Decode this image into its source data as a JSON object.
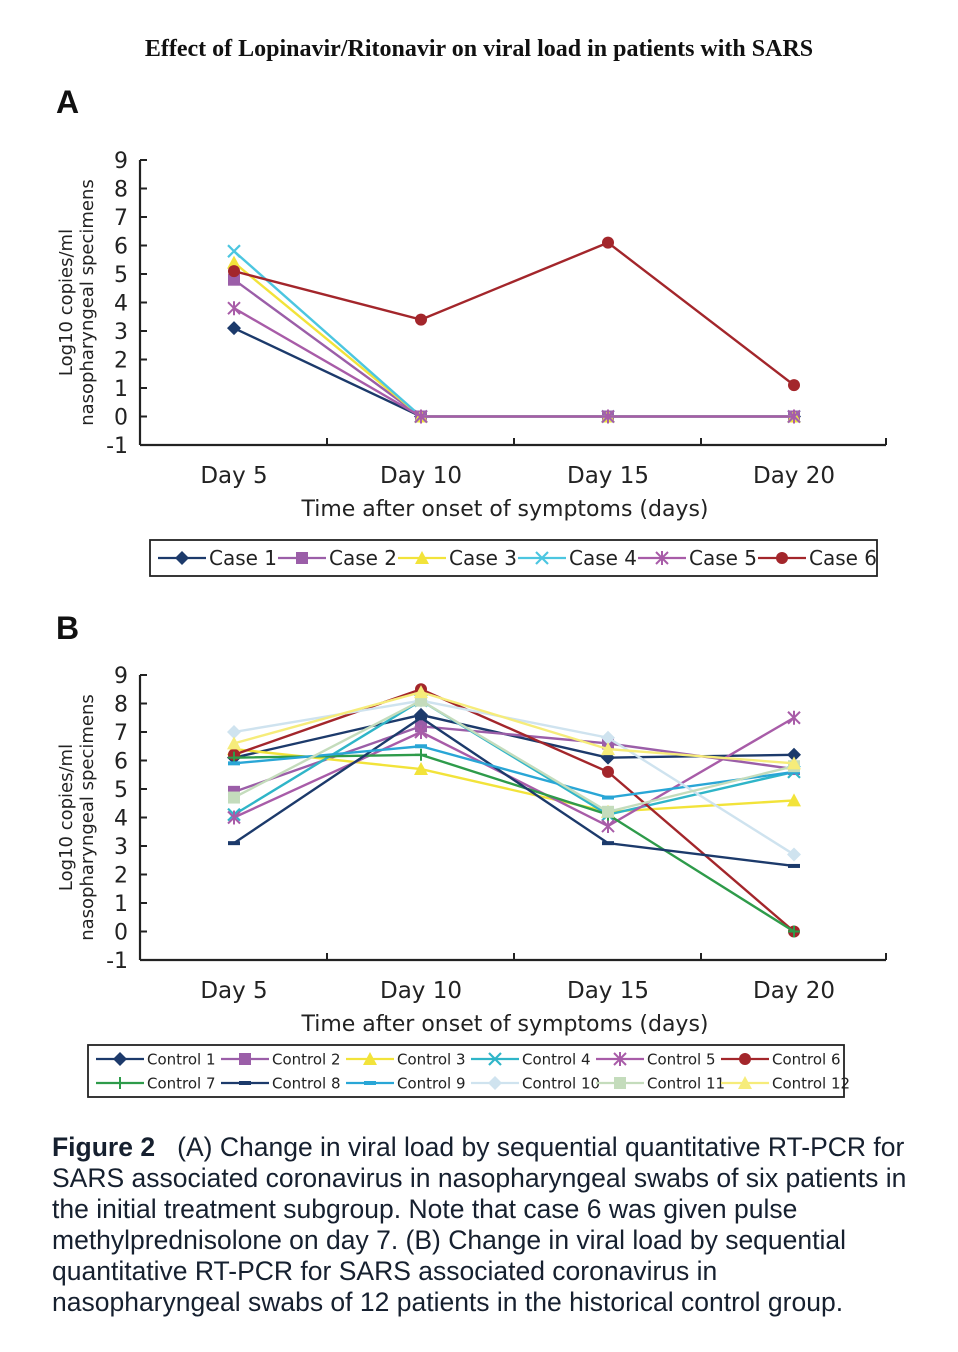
{
  "title": "Effect of Lopinavir/Ritonavir on viral load in patients with SARS",
  "panel_a": {
    "letter": "A"
  },
  "panel_b": {
    "letter": "B"
  },
  "caption": {
    "label": "Figure 2",
    "text": "(A) Change in viral load by sequential quantitative RT-PCR for SARS associated coronavirus in nasopharyngeal swabs of six patients in the initial treatment subgroup. Note that case 6 was given pulse methylprednisolone on day 7. (B) Change in viral load by sequential quantitative RT-PCR for SARS associated coronavirus in nasopharyngeal swabs of 12 patients in the historical control group."
  },
  "chart_data": [
    {
      "type": "line",
      "panel": "A",
      "categories": [
        "Day 5",
        "Day 10",
        "Day 15",
        "Day 20"
      ],
      "ylabel": "Log10 copies/ml nasopharyngeal specimens",
      "xlabel": "Time after onset of symptoms (days)",
      "ylim": [
        -1,
        9
      ],
      "yticks": [
        -1,
        0,
        1,
        2,
        3,
        4,
        5,
        6,
        7,
        8,
        9
      ],
      "legend_position": "bottom",
      "series": [
        {
          "name": "Case 1",
          "color": "#1c3a6b",
          "marker": "diamond",
          "values": [
            3.1,
            0,
            0,
            0
          ]
        },
        {
          "name": "Case 2",
          "color": "#9b5ea8",
          "marker": "square",
          "values": [
            4.8,
            0,
            0,
            0
          ]
        },
        {
          "name": "Case 3",
          "color": "#f2e33a",
          "marker": "triangle",
          "values": [
            5.4,
            0,
            0,
            0
          ]
        },
        {
          "name": "Case 4",
          "color": "#4cc6e0",
          "marker": "x",
          "values": [
            5.8,
            0,
            0,
            0
          ]
        },
        {
          "name": "Case 5",
          "color": "#a85ca8",
          "marker": "asterisk",
          "values": [
            3.8,
            0,
            0,
            0
          ]
        },
        {
          "name": "Case 6",
          "color": "#a3262b",
          "marker": "circle",
          "values": [
            5.1,
            3.4,
            6.1,
            1.1
          ]
        }
      ]
    },
    {
      "type": "line",
      "panel": "B",
      "categories": [
        "Day 5",
        "Day 10",
        "Day 15",
        "Day 20"
      ],
      "ylabel": "Log10 copies/ml nasopharyngeal specimens",
      "xlabel": "Time after onset of symptoms (days)",
      "ylim": [
        -1,
        9
      ],
      "yticks": [
        -1,
        0,
        1,
        2,
        3,
        4,
        5,
        6,
        7,
        8,
        9
      ],
      "legend_position": "bottom",
      "series": [
        {
          "name": "Control 1",
          "color": "#1c3a6b",
          "marker": "diamond",
          "values": [
            6.1,
            7.6,
            6.1,
            6.2
          ]
        },
        {
          "name": "Control 2",
          "color": "#9b5ea8",
          "marker": "square",
          "values": [
            4.9,
            7.2,
            6.6,
            5.7
          ]
        },
        {
          "name": "Control 3",
          "color": "#f2e33a",
          "marker": "triangle",
          "values": [
            6.4,
            5.7,
            4.2,
            4.6
          ]
        },
        {
          "name": "Control 4",
          "color": "#2fb5c8",
          "marker": "x",
          "values": [
            4.1,
            8.1,
            4.1,
            5.6
          ]
        },
        {
          "name": "Control 5",
          "color": "#a85ca8",
          "marker": "asterisk",
          "values": [
            4.0,
            7.0,
            3.7,
            7.5
          ]
        },
        {
          "name": "Control 6",
          "color": "#a3262b",
          "marker": "circle",
          "values": [
            6.2,
            8.5,
            5.6,
            0.0
          ]
        },
        {
          "name": "Control 7",
          "color": "#2e9b4a",
          "marker": "plus",
          "values": [
            6.1,
            6.2,
            4.1,
            0.0
          ]
        },
        {
          "name": "Control 8",
          "color": "#1c3a6b",
          "marker": "dash",
          "values": [
            3.1,
            7.5,
            3.1,
            2.3
          ]
        },
        {
          "name": "Control 9",
          "color": "#29a6d6",
          "marker": "dash",
          "values": [
            5.9,
            6.5,
            4.7,
            5.6
          ]
        },
        {
          "name": "Control 10",
          "color": "#cfe3ef",
          "marker": "diamond",
          "values": [
            7.0,
            8.1,
            6.8,
            2.7
          ]
        },
        {
          "name": "Control 11",
          "color": "#c4dcbc",
          "marker": "square",
          "values": [
            4.7,
            8.1,
            4.2,
            5.8
          ]
        },
        {
          "name": "Control 12",
          "color": "#f6ec7a",
          "marker": "triangle",
          "values": [
            6.6,
            8.4,
            6.4,
            5.9
          ]
        }
      ]
    }
  ]
}
